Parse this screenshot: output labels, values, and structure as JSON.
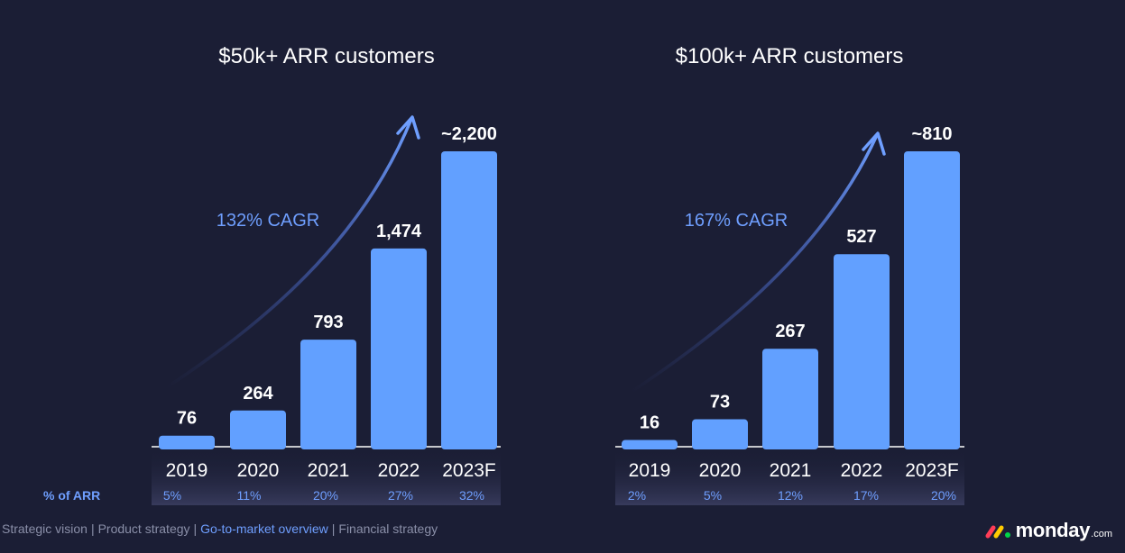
{
  "chart_data": [
    {
      "type": "bar",
      "title": "$50k+ ARR customers",
      "categories": [
        "2019",
        "2020",
        "2021",
        "2022",
        "2023F"
      ],
      "values": [
        76,
        264,
        793,
        1474,
        2200
      ],
      "value_labels": [
        "76",
        "264",
        "793",
        "1,474",
        "~2,200"
      ],
      "annotation": "132% CAGR",
      "pct_of_arr": [
        "5%",
        "11%",
        "20%",
        "27%",
        "32%"
      ],
      "ylim": [
        0,
        2200
      ]
    },
    {
      "type": "bar",
      "title": "$100k+ ARR customers",
      "categories": [
        "2019",
        "2020",
        "2021",
        "2022",
        "2023F"
      ],
      "values": [
        16,
        73,
        267,
        527,
        810
      ],
      "value_labels": [
        "16",
        "73",
        "267",
        "527",
        "~810"
      ],
      "annotation": "167% CAGR",
      "pct_of_arr": [
        "2%",
        "5%",
        "12%",
        "17%",
        "20%"
      ],
      "ylim": [
        0,
        810
      ]
    }
  ],
  "row_label": "% of ARR",
  "footer": {
    "items": [
      "Strategic vision",
      "Product strategy",
      "Go-to-market overview",
      "Financial strategy"
    ],
    "active_index": 2
  },
  "brand": {
    "name": "monday",
    "suffix": ".com"
  },
  "colors": {
    "background": "#1b1e35",
    "bar": "#62a0ff",
    "accent": "#6f9fff",
    "logo_red": "#ff3d57",
    "logo_yellow": "#ffcb00",
    "logo_green": "#00d647"
  }
}
